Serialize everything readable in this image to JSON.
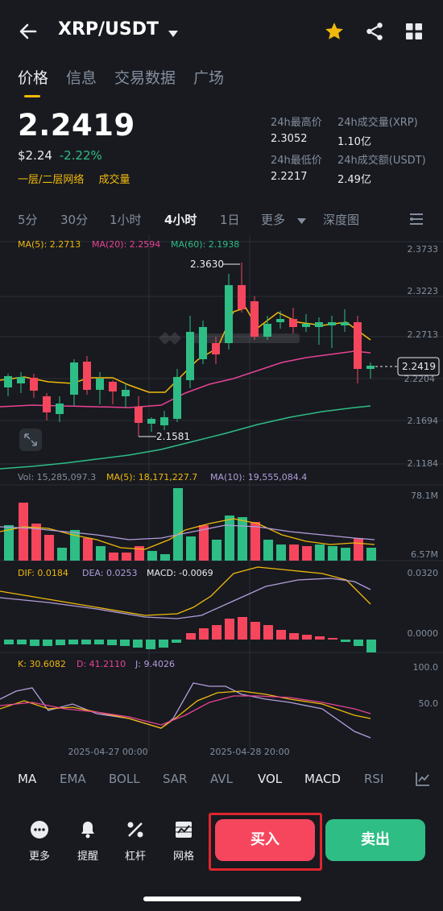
{
  "header": {
    "pair": "XRP/USDT"
  },
  "tabs": [
    "价格",
    "信息",
    "交易数据",
    "广场"
  ],
  "price": {
    "last": "2.2419",
    "usd": "$2.24",
    "change": "-2.22%",
    "tag1": "一层/二层网络",
    "tag2": "成交量"
  },
  "stats": {
    "high_label": "24h最高价",
    "high": "2.3052",
    "vol_xrp_label": "24h成交量(XRP)",
    "vol_xrp": "1.10亿",
    "low_label": "24h最低价",
    "low": "2.2217",
    "vol_usdt_label": "24h成交额(USDT)",
    "vol_usdt": "2.49亿"
  },
  "timeframes": [
    "5分",
    "30分",
    "1小时",
    "4小时",
    "1日",
    "更多",
    "深度图"
  ],
  "chart": {
    "ma_line": {
      "ma5": "MA(5): 2.2713",
      "ma20": "MA(20): 2.2594",
      "ma60": "MA(60): 2.1938"
    },
    "price_axis": [
      "2.3733",
      "2.3223",
      "2.2713",
      "2.2204",
      "2.1694",
      "2.1184"
    ],
    "current_price_tag": "2.2419",
    "high_marker": "2.3630",
    "low_marker": "2.1581",
    "vol_line": {
      "vol": "Vol: 15,285,097.3",
      "ma5": "MA(5): 18,171,227.7",
      "ma10": "MA(10): 19,555,084.4"
    },
    "vol_axis": [
      "78.1M",
      "6.57M"
    ],
    "macd_line": {
      "dif": "DIF: 0.0184",
      "dea": "DEA: 0.0253",
      "macd": "MACD: -0.0069"
    },
    "macd_axis": [
      "0.0320",
      "0.0000"
    ],
    "kdj_line": {
      "k": "K: 30.6082",
      "d": "D: 41.2110",
      "j": "J: 9.4026"
    },
    "kdj_axis": [
      "100.0",
      "50.0"
    ],
    "time_labels": [
      "2025-04-27 00:00",
      "2025-04-28 20:00"
    ]
  },
  "indicators": [
    "MA",
    "EMA",
    "BOLL",
    "SAR",
    "AVL",
    "VOL",
    "MACD",
    "RSI"
  ],
  "bottom": {
    "more": "更多",
    "alert": "提醒",
    "leverage": "杠杆",
    "grid": "网格",
    "buy": "买入",
    "sell": "卖出"
  },
  "colors": {
    "up": "#2ebd85",
    "down": "#f6465d",
    "accent": "#f0b90b",
    "ma5": "#f0b90b",
    "ma20": "#e84393",
    "ma60": "#2ebd85"
  }
}
